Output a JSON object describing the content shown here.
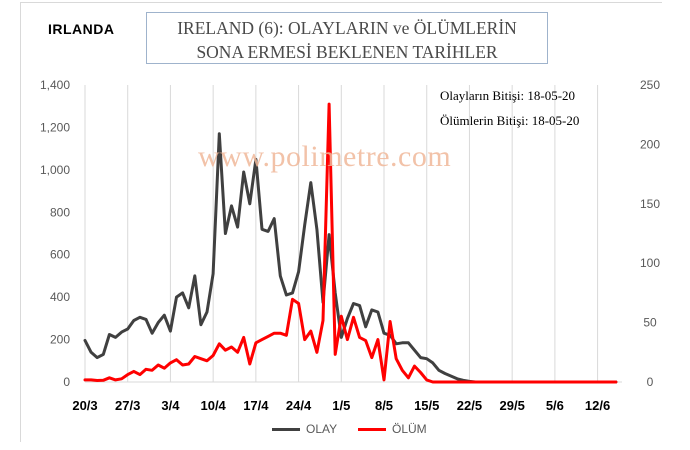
{
  "header": {
    "country": "IRLANDA",
    "title_line1": "IRELAND (6): OLAYLARIN ve ÖLÜMLERİN",
    "title_line2": "SONA ERMESİ BEKLENEN TARİHLER"
  },
  "notes": {
    "cases_end": "Olayların Bitişi: 18-05-20",
    "deaths_end": "Ölümlerin Bitişi: 18-05-20"
  },
  "watermark": "www.polimetre.com",
  "colors": {
    "cases": "#404040",
    "deaths": "#ff0000",
    "grid": "#d9d9d9"
  },
  "chart_data": {
    "type": "line",
    "x_tick_labels": [
      "20/3",
      "27/3",
      "3/4",
      "10/4",
      "17/4",
      "24/4",
      "1/5",
      "8/5",
      "15/5",
      "22/5",
      "29/5",
      "5/6",
      "12/6"
    ],
    "x_start": "20/3",
    "x_end": "15/6",
    "y_left": {
      "ylim": [
        0,
        1400
      ],
      "ticks": [
        "0",
        "200",
        "400",
        "600",
        "800",
        "1,000",
        "1,200",
        "1,400"
      ],
      "tick_values": [
        0,
        200,
        400,
        600,
        800,
        1000,
        1200,
        1400
      ]
    },
    "y_right": {
      "ylim": [
        0,
        250
      ],
      "ticks": [
        "0",
        "50",
        "100",
        "150",
        "200",
        "250"
      ],
      "tick_values": [
        0,
        50,
        100,
        150,
        200,
        250
      ]
    },
    "grid": "vertical",
    "legend": "bottom",
    "series": [
      {
        "name": "OLAY",
        "axis": "left",
        "color": "#404040",
        "start": "20/3",
        "values": [
          196,
          140,
          115,
          130,
          224,
          210,
          235,
          250,
          290,
          305,
          295,
          230,
          280,
          315,
          240,
          400,
          420,
          350,
          500,
          270,
          330,
          510,
          1170,
          700,
          830,
          730,
          990,
          840,
          1050,
          720,
          710,
          770,
          500,
          410,
          420,
          520,
          740,
          940,
          720,
          375,
          695,
          420,
          210,
          300,
          370,
          360,
          260,
          340,
          330,
          230,
          220,
          180,
          185,
          185,
          150,
          115,
          110,
          90,
          55,
          40,
          28,
          15,
          8,
          3,
          0,
          0,
          0,
          0,
          0,
          0,
          0,
          0,
          0,
          0,
          0,
          0,
          0,
          0,
          0,
          0,
          0,
          0,
          0,
          0,
          0,
          0,
          0,
          0
        ]
      },
      {
        "name": "ÖLÜM",
        "axis": "left",
        "color": "#ff0000",
        "start": "20/3",
        "values": [
          10,
          10,
          7,
          8,
          20,
          10,
          15,
          35,
          50,
          35,
          60,
          55,
          80,
          65,
          90,
          105,
          80,
          85,
          120,
          110,
          100,
          125,
          180,
          150,
          165,
          140,
          210,
          85,
          185,
          200,
          215,
          230,
          230,
          220,
          390,
          370,
          200,
          240,
          140,
          290,
          1310,
          130,
          310,
          200,
          305,
          210,
          195,
          115,
          200,
          10,
          285,
          110,
          55,
          20,
          75,
          45,
          10,
          0,
          0,
          0,
          0,
          0,
          0,
          0,
          0,
          0,
          0,
          0,
          0,
          0,
          0,
          0,
          0,
          0,
          0,
          0,
          0,
          0,
          0,
          0,
          0,
          0,
          0,
          0,
          0,
          0,
          0,
          0
        ]
      }
    ]
  }
}
